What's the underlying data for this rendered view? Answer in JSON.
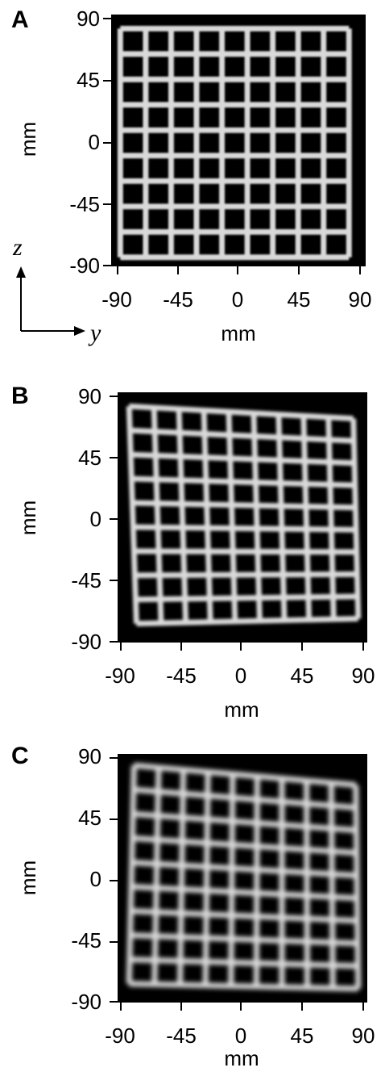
{
  "panels": [
    {
      "label": "A",
      "yticks": [
        "90",
        "45",
        "0",
        "-45",
        "-90"
      ],
      "xticks": [
        "-90",
        "-45",
        "0",
        "45",
        "90"
      ],
      "ylabel": "mm",
      "xlabel": "mm",
      "distortion": 0
    },
    {
      "label": "B",
      "yticks": [
        "90",
        "45",
        "0",
        "-45",
        "-90"
      ],
      "xticks": [
        "-90",
        "-45",
        "0",
        "45",
        "90"
      ],
      "ylabel": "mm",
      "xlabel": "mm",
      "distortion": 1
    },
    {
      "label": "C",
      "yticks": [
        "90",
        "45",
        "0",
        "-45",
        "-90"
      ],
      "xticks": [
        "-90",
        "-45",
        "0",
        "45",
        "90"
      ],
      "ylabel": "mm",
      "xlabel": "mm",
      "distortion": 2
    }
  ],
  "axes_inset": {
    "vertical": "z",
    "horizontal": "y"
  },
  "colors": {
    "grid": "#d9d9d9",
    "background": "#000000"
  }
}
